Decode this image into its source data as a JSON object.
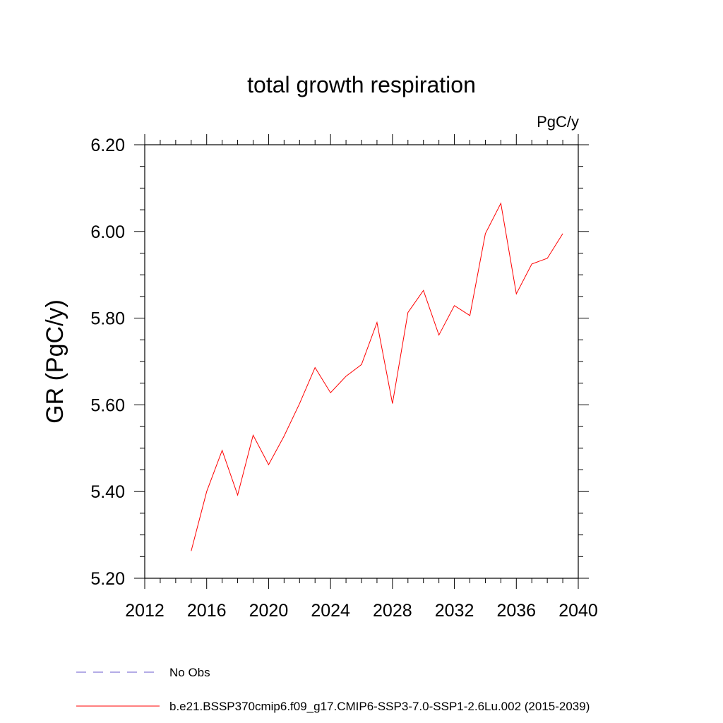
{
  "chart_data": {
    "type": "line",
    "title": "total growth respiration",
    "units": "PgC/y",
    "ylabel": "GR  (PgC/y)",
    "xlabel": "",
    "xlim": [
      2012,
      2040
    ],
    "ylim": [
      5.2,
      6.2
    ],
    "x_ticks": [
      "2012",
      "2016",
      "2020",
      "2024",
      "2028",
      "2032",
      "2036",
      "2040"
    ],
    "y_ticks": [
      "5.20",
      "5.40",
      "5.60",
      "5.80",
      "6.00",
      "6.20"
    ],
    "grid": false,
    "legend_position": "bottom",
    "series": [
      {
        "name": "b.e21.BSSP370cmip6.f09_g17.CMIP6-SSP3-7.0-SSP1-2.6Lu.002 (2015-2039)",
        "color": "#ff0000",
        "line_style": "solid",
        "x": [
          2015,
          2016,
          2017,
          2018,
          2019,
          2020,
          2021,
          2022,
          2023,
          2024,
          2025,
          2026,
          2027,
          2028,
          2029,
          2030,
          2031,
          2032,
          2033,
          2034,
          2035,
          2036,
          2037,
          2038,
          2039
        ],
        "y": [
          5.263,
          5.4,
          5.495,
          5.392,
          5.53,
          5.462,
          5.528,
          5.603,
          5.686,
          5.628,
          5.666,
          5.693,
          5.79,
          5.603,
          5.813,
          5.864,
          5.761,
          5.829,
          5.806,
          5.995,
          6.065,
          5.856,
          5.925,
          5.938,
          5.995
        ]
      },
      {
        "name": "No Obs",
        "color": "#6a5acd",
        "line_style": "dashed",
        "x": [],
        "y": []
      }
    ]
  }
}
